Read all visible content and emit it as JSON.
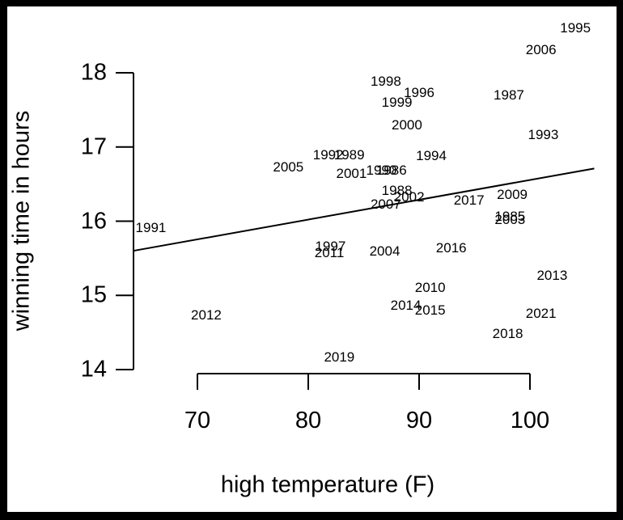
{
  "chart_data": {
    "type": "scatter",
    "title": "",
    "xlabel": "high temperature (F)",
    "ylabel": "winning time in hours",
    "x_ticks": [
      70,
      80,
      90,
      100
    ],
    "y_ticks": [
      14,
      15,
      16,
      17,
      18
    ],
    "x_axis_range": [
      70,
      100
    ],
    "y_axis_range": [
      14,
      18
    ],
    "xlim": [
      64.2,
      105.8
    ],
    "ylim": [
      13.9,
      18.75
    ],
    "grid": false,
    "legend": "none",
    "marker_style": "year text labels plotted at data points",
    "points": [
      {
        "label": "1985",
        "x": 98.2,
        "y": 16.06
      },
      {
        "label": "1986",
        "x": 87.5,
        "y": 16.68
      },
      {
        "label": "1987",
        "x": 98.1,
        "y": 17.7
      },
      {
        "label": "1988",
        "x": 88.0,
        "y": 16.41
      },
      {
        "label": "1989",
        "x": 83.7,
        "y": 16.89
      },
      {
        "label": "1990",
        "x": 86.6,
        "y": 16.68
      },
      {
        "label": "1991",
        "x": 65.8,
        "y": 15.91
      },
      {
        "label": "1992",
        "x": 81.8,
        "y": 16.89
      },
      {
        "label": "1993",
        "x": 101.2,
        "y": 17.16
      },
      {
        "label": "1994",
        "x": 91.1,
        "y": 16.88
      },
      {
        "label": "1995",
        "x": 104.1,
        "y": 18.6
      },
      {
        "label": "1996",
        "x": 90.0,
        "y": 17.73
      },
      {
        "label": "1997",
        "x": 82.0,
        "y": 15.66
      },
      {
        "label": "1998",
        "x": 87.0,
        "y": 17.88
      },
      {
        "label": "1999",
        "x": 88.0,
        "y": 17.6
      },
      {
        "label": "2000",
        "x": 88.9,
        "y": 17.29
      },
      {
        "label": "2001",
        "x": 83.9,
        "y": 16.64
      },
      {
        "label": "2002",
        "x": 89.1,
        "y": 16.32
      },
      {
        "label": "2003",
        "x": 98.2,
        "y": 16.02
      },
      {
        "label": "2004",
        "x": 86.9,
        "y": 15.59
      },
      {
        "label": "2005",
        "x": 78.2,
        "y": 16.72
      },
      {
        "label": "2006",
        "x": 101.0,
        "y": 18.31
      },
      {
        "label": "2007",
        "x": 87.0,
        "y": 16.22
      },
      {
        "label": "2009",
        "x": 98.4,
        "y": 16.35
      },
      {
        "label": "2010",
        "x": 91.0,
        "y": 15.1
      },
      {
        "label": "2011",
        "x": 81.9,
        "y": 15.57
      },
      {
        "label": "2012",
        "x": 70.8,
        "y": 14.73
      },
      {
        "label": "2013",
        "x": 102.0,
        "y": 15.26
      },
      {
        "label": "2014",
        "x": 88.8,
        "y": 14.86
      },
      {
        "label": "2015",
        "x": 91.0,
        "y": 14.8
      },
      {
        "label": "2016",
        "x": 92.9,
        "y": 15.63
      },
      {
        "label": "2017",
        "x": 94.5,
        "y": 16.28
      },
      {
        "label": "2018",
        "x": 98.0,
        "y": 14.48
      },
      {
        "label": "2019",
        "x": 82.8,
        "y": 14.16
      },
      {
        "label": "2021",
        "x": 101.0,
        "y": 14.75
      }
    ],
    "trend_line": {
      "x1": 64.2,
      "y1": 15.6,
      "x2": 105.8,
      "y2": 16.71
    }
  },
  "colors": {
    "frame_background": "#000000",
    "plot_background": "#ffffff",
    "ink": "#000000"
  }
}
